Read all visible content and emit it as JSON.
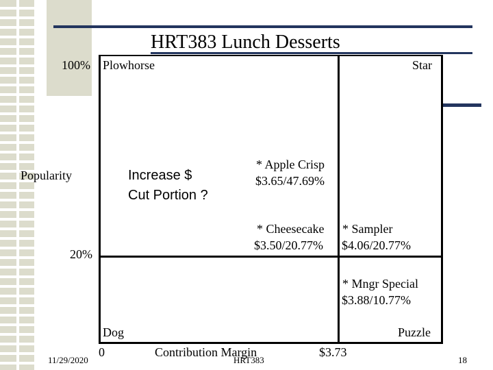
{
  "slide": {
    "title": "HRT383 Lunch Desserts",
    "date": "11/29/2020",
    "footer": "HRT383",
    "page_number": "18"
  },
  "matrix": {
    "y_axis_label": "Popularity",
    "y_top_label": "100%",
    "y_mid_label": "20%",
    "x_axis_label": "Contribution Margin",
    "x_origin_label": "0",
    "x_mid_label": "$3.73",
    "quadrants": {
      "top_left": "Plowhorse",
      "top_right": "Star",
      "bottom_left": "Dog",
      "bottom_right": "Puzzle"
    },
    "action": {
      "line1": "Increase $",
      "line2": "Cut Portion ?"
    },
    "items": [
      {
        "line1": "* Apple Crisp",
        "line2": "$3.65/47.69%"
      },
      {
        "line1": "* Cheesecake",
        "line2": "$3.50/20.77%"
      },
      {
        "line1": "* Sampler",
        "line2": "$4.06/20.77%"
      },
      {
        "line1": "* Mngr Special",
        "line2": "$3.88/10.77%"
      }
    ]
  }
}
